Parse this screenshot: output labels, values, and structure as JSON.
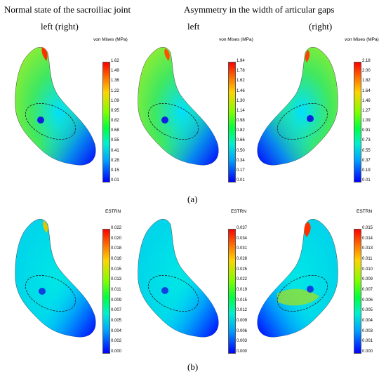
{
  "header": {
    "left_title": "Normal state of the sacroiliac joint",
    "right_title": "Asymmetry in the width of articular gaps",
    "sub_left_right": "left (right)",
    "sub_left": "left",
    "sub_right": "(right)"
  },
  "captions": {
    "a": "(a)",
    "b": "(b)"
  },
  "panels": [
    {
      "title": "von Mises (MPa)",
      "ticks": [
        "1.62",
        "1.49",
        "1.36",
        "1.22",
        "1.09",
        "0.95",
        "0.82",
        "0.68",
        "0.55",
        "0.41",
        "0.28",
        "0.15",
        "0.01"
      ]
    },
    {
      "title": "von Mises (MPa)",
      "ticks": [
        "1.94",
        "1.78",
        "1.62",
        "1.46",
        "1.30",
        "1.14",
        "0.98",
        "0.82",
        "0.66",
        "0.50",
        "0.34",
        "0.17",
        "0.01"
      ]
    },
    {
      "title": "von Mises (MPa)",
      "ticks": [
        "2.18",
        "2.00",
        "1.82",
        "1.64",
        "1.46",
        "1.27",
        "1.09",
        "0.91",
        "0.73",
        "0.55",
        "0.37",
        "0.19",
        "0.01"
      ]
    },
    {
      "title": "ESTRN",
      "ticks": [
        "0.022",
        "0.020",
        "0.018",
        "0.016",
        "0.015",
        "0.013",
        "0.011",
        "0.009",
        "0.007",
        "0.005",
        "0.004",
        "0.002",
        "0.000"
      ]
    },
    {
      "title": "ESTRN",
      "ticks": [
        "0.037",
        "0.034",
        "0.031",
        "0.028",
        "0.025",
        "0.022",
        "0.019",
        "0.015",
        "0.012",
        "0.009",
        "0.006",
        "0.003",
        "0.000"
      ]
    },
    {
      "title": "ESTRN",
      "ticks": [
        "0.015",
        "0.014",
        "0.013",
        "0.011",
        "0.010",
        "0.009",
        "0.007",
        "0.006",
        "0.005",
        "0.004",
        "0.003",
        "0.001",
        "0.000"
      ]
    }
  ]
}
